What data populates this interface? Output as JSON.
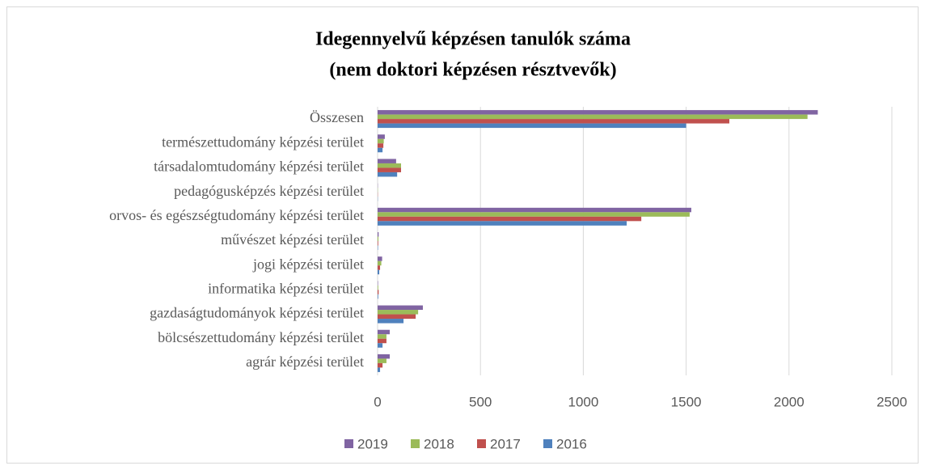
{
  "chart_data": {
    "type": "barh",
    "title": [
      "Idegennyelvű képzésen tanulók száma",
      "(nem doktori képzésen résztvevők)"
    ],
    "categories": [
      "Összesen",
      "természettudomány képzési terület",
      "társadalomtudomány képzési terület",
      "pedagógusképzés képzési terület",
      "orvos- és egészségtudomány képzési terület",
      "művészet képzési terület",
      "jogi képzési terület",
      "informatika képzési terület",
      "gazdaságtudományok képzési terület",
      "bölcsészettudomány képzési terület",
      "agrár képzési terület"
    ],
    "series": [
      {
        "name": "2019",
        "color": "#8064a2",
        "values": [
          2140,
          35,
          90,
          1,
          1525,
          5,
          22,
          2,
          220,
          59,
          59
        ]
      },
      {
        "name": "2018",
        "color": "#9bbb59",
        "values": [
          2090,
          30,
          114,
          1,
          1517,
          4,
          18,
          3,
          197,
          43,
          43
        ]
      },
      {
        "name": "2017",
        "color": "#c0504d",
        "values": [
          1710,
          28,
          114,
          1,
          1282,
          3,
          12,
          5,
          185,
          43,
          24
        ]
      },
      {
        "name": "2016",
        "color": "#4f81bd",
        "values": [
          1500,
          24,
          95,
          1,
          1211,
          2,
          8,
          3,
          126,
          24,
          12
        ]
      }
    ],
    "xlim": [
      0,
      2500
    ],
    "xticks": [
      0,
      500,
      1000,
      1500,
      2000,
      2500
    ],
    "grid": true,
    "legend": "bottom"
  }
}
